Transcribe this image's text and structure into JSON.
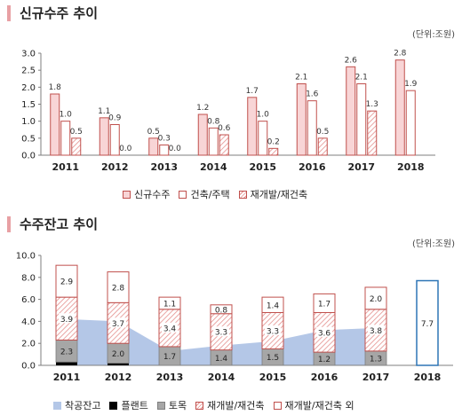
{
  "top": {
    "title": "신규수주 추이",
    "unit": "(단위:조원)",
    "legend": [
      "신규수주",
      "건축/주택",
      "재개발/재건축"
    ],
    "colors": {
      "new": "#f8d5d6",
      "stroke": "#c0504d",
      "hatch": "#e5908e"
    }
  },
  "bottom": {
    "title": "수주잔고 추이",
    "unit": "(단위:조원)",
    "legend": [
      "착공잔고",
      "플랜트",
      "토목",
      "재개발/재건축",
      "재개발/재건축 외"
    ],
    "colors": {
      "area": "#b4c7e7",
      "plant": "#000000",
      "civil": "#a6a6a6",
      "outline_2018": "#2e75b6"
    }
  },
  "chart_data": [
    {
      "type": "bar",
      "title": "신규수주 추이",
      "categories": [
        "2011",
        "2012",
        "2013",
        "2014",
        "2015",
        "2016",
        "2017",
        "2018"
      ],
      "ylim": [
        0,
        3.0
      ],
      "yticks": [
        "0.0",
        "0.5",
        "1.0",
        "1.5",
        "2.0",
        "2.5",
        "3.0"
      ],
      "series": [
        {
          "name": "신규수주",
          "values": [
            1.8,
            1.1,
            0.5,
            1.2,
            1.7,
            2.1,
            2.6,
            2.8
          ],
          "labels": [
            "1.8",
            "1.1",
            "0.5",
            "1.2",
            "1.7",
            "2.1",
            "2.6",
            "2.8"
          ]
        },
        {
          "name": "건축/주택",
          "values": [
            1.0,
            0.9,
            0.3,
            0.8,
            1.0,
            1.6,
            2.1,
            1.9
          ],
          "labels": [
            "1.0",
            "0.9",
            "0.3",
            "0.8",
            "1.0",
            "1.6",
            "2.1",
            "1.9"
          ]
        },
        {
          "name": "재개발/재건축",
          "values": [
            0.5,
            0.0,
            0.0,
            0.6,
            0.2,
            0.5,
            1.3,
            null
          ],
          "labels": [
            "0.5",
            "0.0",
            "0.0",
            "0.6",
            "0.2",
            "0.5",
            "1.3",
            ""
          ]
        }
      ]
    },
    {
      "type": "bar",
      "title": "수주잔고 추이",
      "categories": [
        "2011",
        "2012",
        "2013",
        "2014",
        "2015",
        "2016",
        "2017",
        "2018"
      ],
      "ylim": [
        0,
        10.0
      ],
      "yticks": [
        "0.0",
        "2.0",
        "4.0",
        "6.0",
        "8.0",
        "10.0"
      ],
      "series": [
        {
          "name": "착공잔고",
          "type": "area",
          "values": [
            4.2,
            4.0,
            1.3,
            1.8,
            2.2,
            3.2,
            3.4,
            null
          ]
        },
        {
          "name": "플랜트",
          "values": [
            0.3,
            0.2,
            0.0,
            0.0,
            0.0,
            0.0,
            0.0,
            null
          ]
        },
        {
          "name": "토목",
          "values": [
            2.3,
            2.0,
            1.7,
            1.4,
            1.5,
            1.2,
            1.3,
            null
          ],
          "labels": [
            "2.3",
            "2.0",
            "1.7",
            "1.4",
            "1.5",
            "1.2",
            "1.3",
            ""
          ]
        },
        {
          "name": "재개발/재건축",
          "values": [
            3.9,
            3.7,
            3.4,
            3.3,
            3.3,
            3.6,
            3.8,
            null
          ],
          "labels": [
            "3.9",
            "3.7",
            "3.4",
            "3.3",
            "3.3",
            "3.6",
            "3.8",
            ""
          ]
        },
        {
          "name": "재개발/재건축 외",
          "values": [
            2.9,
            2.8,
            1.1,
            0.8,
            1.4,
            1.7,
            2.0,
            7.7
          ],
          "labels": [
            "2.9",
            "2.8",
            "1.1",
            "0.8",
            "1.4",
            "1.7",
            "2.0",
            "7.7"
          ]
        }
      ]
    }
  ]
}
